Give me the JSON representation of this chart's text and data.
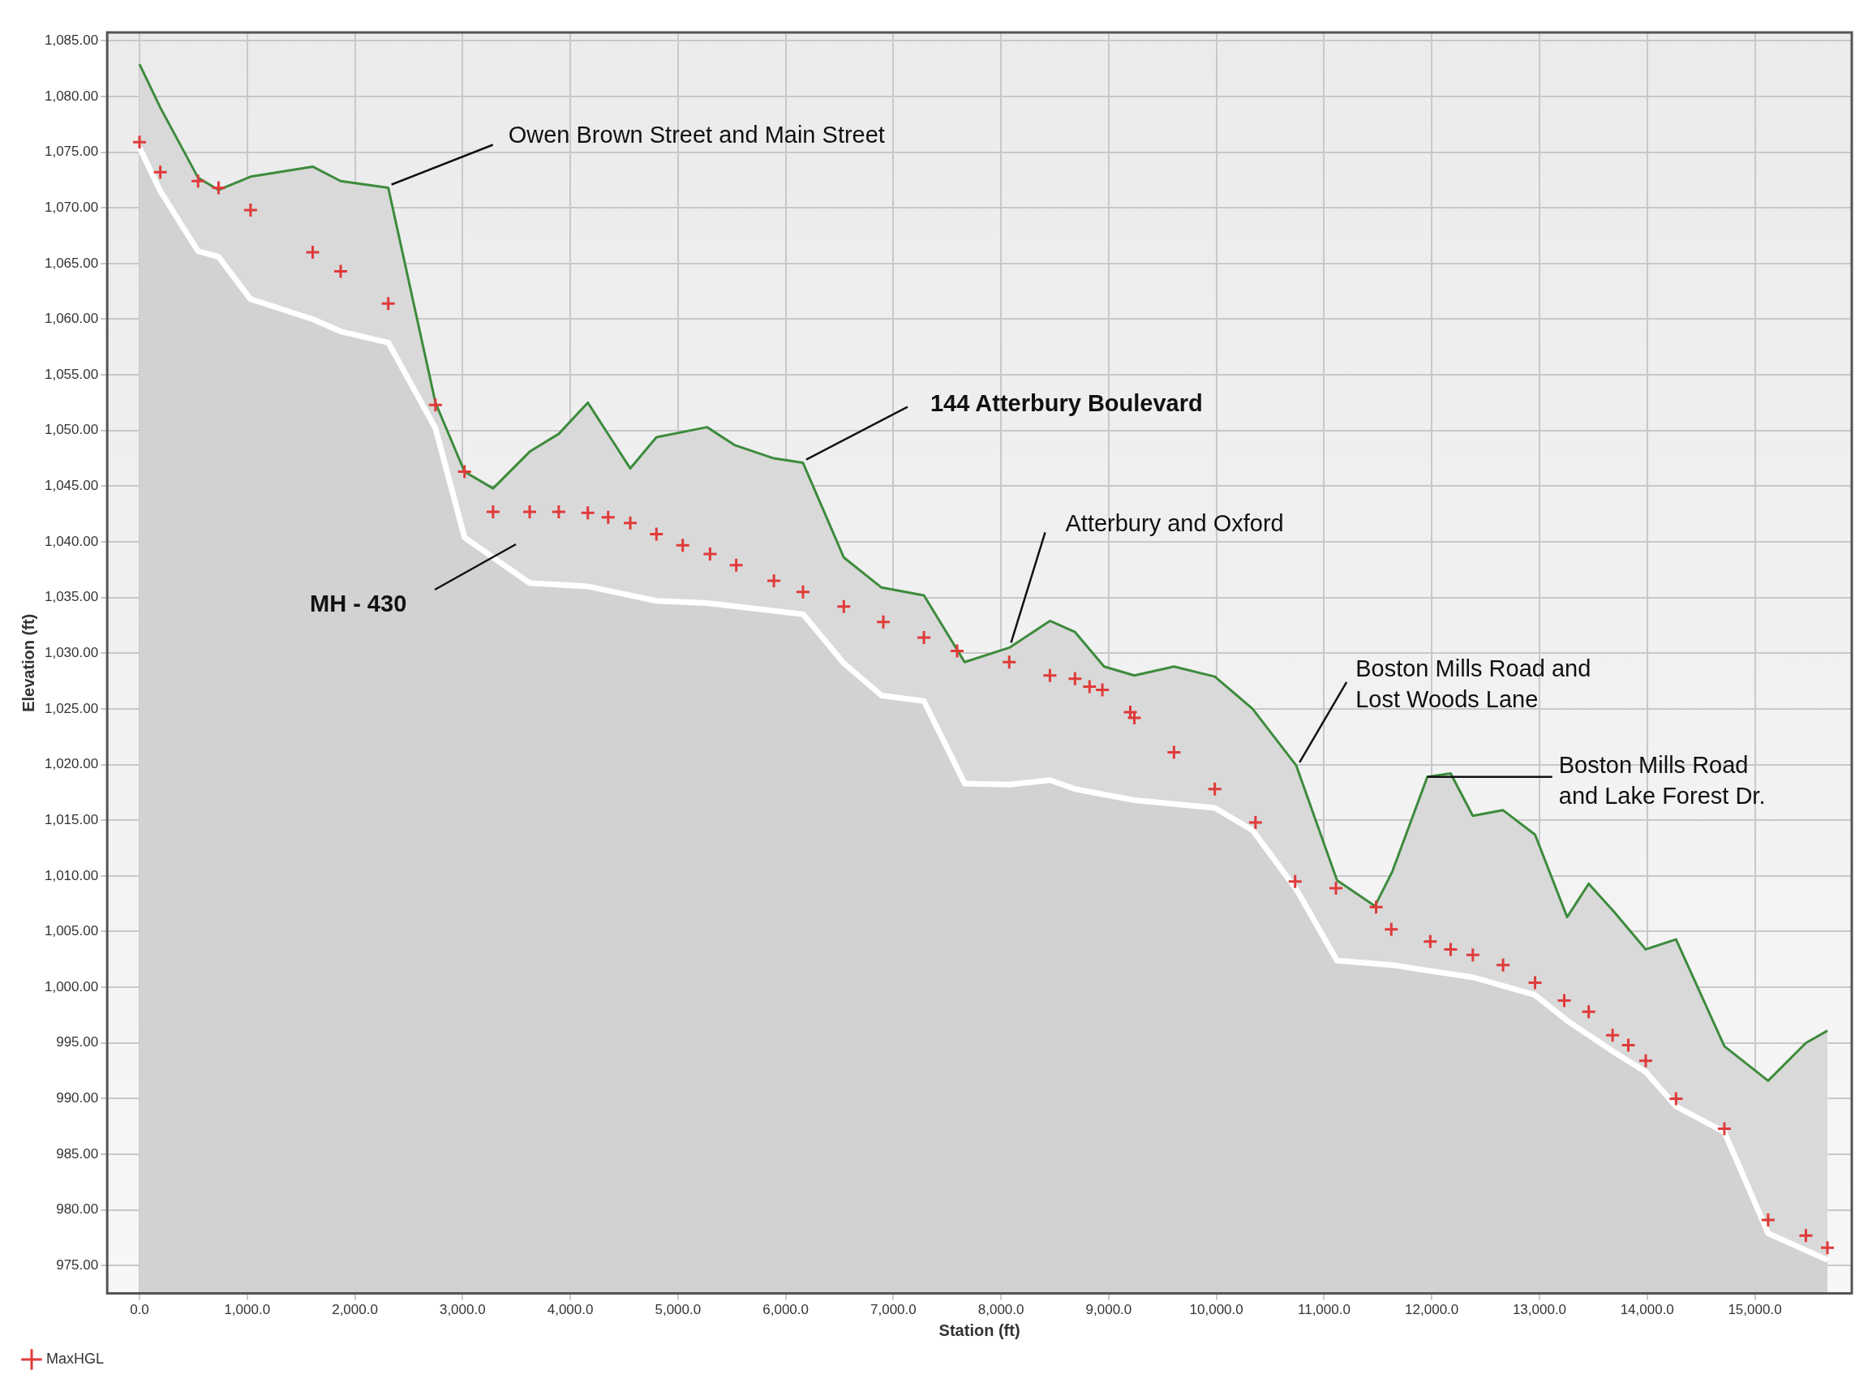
{
  "chart_data": {
    "type": "line",
    "xlabel": "Station (ft)",
    "ylabel": "Elevation (ft)",
    "xlim": [
      -300,
      15900
    ],
    "ylim": [
      972.5,
      1085.75
    ],
    "xticks": [
      {
        "value": 0,
        "label": "0.0"
      },
      {
        "value": 1000,
        "label": "1,000.0"
      },
      {
        "value": 2000,
        "label": "2,000.0"
      },
      {
        "value": 3000,
        "label": "3,000.0"
      },
      {
        "value": 4000,
        "label": "4,000.0"
      },
      {
        "value": 5000,
        "label": "5,000.0"
      },
      {
        "value": 6000,
        "label": "6,000.0"
      },
      {
        "value": 7000,
        "label": "7,000.0"
      },
      {
        "value": 8000,
        "label": "8,000.0"
      },
      {
        "value": 9000,
        "label": "9,000.0"
      },
      {
        "value": 10000,
        "label": "10,000.0"
      },
      {
        "value": 11000,
        "label": "11,000.0"
      },
      {
        "value": 12000,
        "label": "12,000.0"
      },
      {
        "value": 13000,
        "label": "13,000.0"
      },
      {
        "value": 14000,
        "label": "14,000.0"
      },
      {
        "value": 15000,
        "label": "15,000.0"
      }
    ],
    "yticks": [
      {
        "value": 975,
        "label": "975.00"
      },
      {
        "value": 980,
        "label": "980.00"
      },
      {
        "value": 985,
        "label": "985.00"
      },
      {
        "value": 990,
        "label": "990.00"
      },
      {
        "value": 995,
        "label": "995.00"
      },
      {
        "value": 1000,
        "label": "1,000.00"
      },
      {
        "value": 1005,
        "label": "1,005.00"
      },
      {
        "value": 1010,
        "label": "1,010.00"
      },
      {
        "value": 1015,
        "label": "1,015.00"
      },
      {
        "value": 1020,
        "label": "1,020.00"
      },
      {
        "value": 1025,
        "label": "1,025.00"
      },
      {
        "value": 1030,
        "label": "1,030.00"
      },
      {
        "value": 1035,
        "label": "1,035.00"
      },
      {
        "value": 1040,
        "label": "1,040.00"
      },
      {
        "value": 1045,
        "label": "1,045.00"
      },
      {
        "value": 1050,
        "label": "1,050.00"
      },
      {
        "value": 1055,
        "label": "1,055.00"
      },
      {
        "value": 1060,
        "label": "1,060.00"
      },
      {
        "value": 1065,
        "label": "1,065.00"
      },
      {
        "value": 1070,
        "label": "1,070.00"
      },
      {
        "value": 1075,
        "label": "1,075.00"
      },
      {
        "value": 1080,
        "label": "1,080.00"
      },
      {
        "value": 1085,
        "label": "1,085.00"
      }
    ],
    "grid": true,
    "legend": "bottom left",
    "series": [
      {
        "type": "area",
        "color": "#3d8b3d",
        "x": [
          0,
          193,
          544,
          734,
          1031,
          1608,
          1868,
          2310,
          2748,
          3018,
          3283,
          3623,
          3893,
          4163,
          4557,
          4800,
          5270,
          5524,
          5891,
          6161,
          6540,
          6890,
          7284,
          7662,
          8078,
          8454,
          8687,
          8957,
          9238,
          9606,
          9985,
          10336,
          10742,
          11120,
          11472,
          11634,
          11959,
          12175,
          12381,
          12662,
          12959,
          13257,
          13457,
          13690,
          13987,
          14268,
          14717,
          15123,
          15474,
          15674
        ],
        "values": [
          1082.9,
          1079.0,
          1072.7,
          1071.6,
          1072.8,
          1073.7,
          1072.4,
          1071.8,
          1052.5,
          1046.3,
          1044.8,
          1048.1,
          1049.7,
          1052.5,
          1046.6,
          1049.4,
          1050.3,
          1048.7,
          1047.5,
          1047.1,
          1038.6,
          1035.9,
          1035.2,
          1029.2,
          1030.5,
          1032.9,
          1031.9,
          1028.8,
          1028.0,
          1028.8,
          1027.9,
          1025.0,
          1019.9,
          1009.6,
          1007.3,
          1010.4,
          1018.9,
          1019.2,
          1015.4,
          1015.9,
          1013.7,
          1006.3,
          1009.3,
          1006.8,
          1003.4,
          1004.3,
          994.7,
          991.6,
          995.0,
          996.1
        ]
      },
      {
        "type": "area",
        "color": "#ffffff",
        "x": [
          0,
          193,
          544,
          734,
          1031,
          1608,
          1868,
          2310,
          2748,
          3018,
          3623,
          4163,
          4800,
          5270,
          6161,
          6540,
          6890,
          7284,
          7662,
          8078,
          8454,
          8687,
          9238,
          9985,
          10336,
          10742,
          11120,
          11634,
          11959,
          12381,
          12959,
          13257,
          13690,
          13987,
          14268,
          14717,
          15123,
          15674
        ],
        "values": [
          1075.4,
          1071.5,
          1066.1,
          1065.6,
          1061.8,
          1060.0,
          1058.9,
          1057.9,
          1050.2,
          1040.4,
          1036.3,
          1036.0,
          1034.7,
          1034.5,
          1033.5,
          1029.1,
          1026.2,
          1025.7,
          1018.3,
          1018.2,
          1018.6,
          1017.8,
          1016.8,
          1016.1,
          1014.1,
          1008.8,
          1002.4,
          1002.0,
          1001.5,
          1000.9,
          999.3,
          997.0,
          994.2,
          992.4,
          989.3,
          987.0,
          977.9,
          975.5
        ]
      },
      {
        "type": "scatter",
        "name": "MaxHGL",
        "color": "#e03a3a",
        "marker": "cross",
        "x": [
          0,
          193,
          544,
          734,
          1031,
          1608,
          1868,
          2310,
          2748,
          3018,
          3283,
          3623,
          3893,
          4163,
          4352,
          4557,
          4800,
          5044,
          5298,
          5541,
          5891,
          6161,
          6540,
          6907,
          7284,
          7592,
          8076,
          8454,
          8687,
          8822,
          8941,
          9200,
          9238,
          9606,
          9985,
          10363,
          10731,
          11110,
          11483,
          11624,
          11986,
          12175,
          12381,
          12662,
          12959,
          13230,
          13457,
          13679,
          13825,
          13987,
          14268,
          14717,
          15123,
          15474,
          15674
        ],
        "values": [
          1075.9,
          1073.2,
          1072.4,
          1071.8,
          1069.8,
          1066.0,
          1064.3,
          1061.4,
          1052.3,
          1046.3,
          1042.7,
          1042.7,
          1042.7,
          1042.6,
          1042.2,
          1041.7,
          1040.7,
          1039.7,
          1038.9,
          1037.9,
          1036.5,
          1035.5,
          1034.2,
          1032.8,
          1031.4,
          1030.2,
          1029.2,
          1028.0,
          1027.7,
          1027.0,
          1026.7,
          1024.7,
          1024.2,
          1021.1,
          1017.8,
          1014.8,
          1009.5,
          1008.9,
          1007.2,
          1005.2,
          1004.1,
          1003.4,
          1002.9,
          1002.0,
          1000.4,
          998.8,
          997.8,
          995.7,
          994.8,
          993.4,
          990.0,
          987.3,
          979.1,
          977.7,
          976.6
        ]
      }
    ],
    "annotations": [
      {
        "text": "Owen Brown Street and Main Street",
        "x": 2310,
        "y": 1071.8
      },
      {
        "text": "144 Atterbury Boulevard",
        "x": 6161,
        "y": 1047.1
      },
      {
        "text": "Atterbury and Oxford",
        "x": 8078,
        "y": 1030.5
      },
      {
        "text": "Boston Mills Road and Lost Woods Lane",
        "x": 10742,
        "y": 1019.9
      },
      {
        "text": "Boston Mills Road and Lake Forest Dr.",
        "x": 11959,
        "y": 1018.9
      },
      "MH - 430"
    ]
  }
}
